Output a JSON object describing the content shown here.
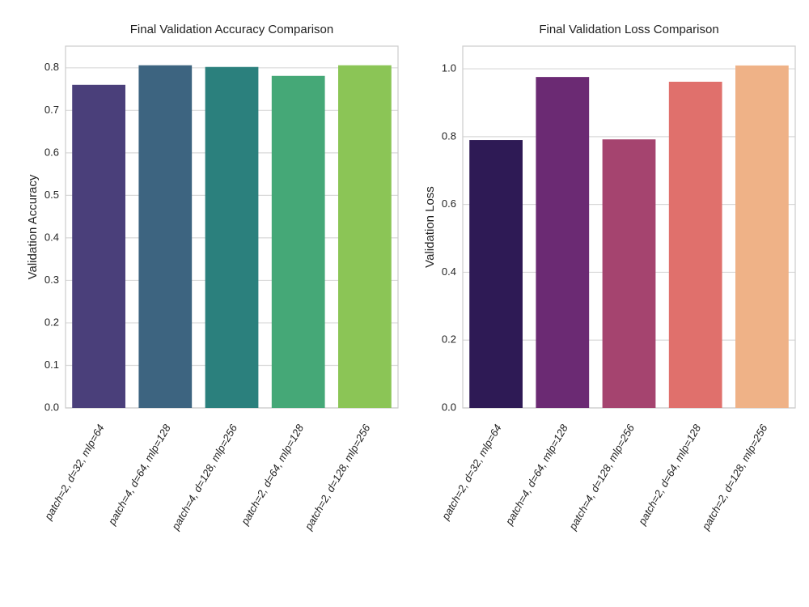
{
  "chart_data": [
    {
      "type": "bar",
      "title": "Final Validation Accuracy Comparison",
      "y_label": "Validation Accuracy",
      "categories": [
        "patch=2, d=32, mlp=64",
        "patch=4, d=64, mlp=128",
        "patch=4, d=128, mlp=256",
        "patch=2, d=64, mlp=128",
        "patch=2, d=128, mlp=256"
      ],
      "values": [
        0.76,
        0.806,
        0.802,
        0.781,
        0.806
      ],
      "colors": [
        "#4a3f7a",
        "#3d6480",
        "#2b807d",
        "#45a877",
        "#8bc556"
      ],
      "ylim": [
        0,
        0.851
      ],
      "yticks": [
        {
          "value": 0,
          "label": "0.0"
        },
        0.1,
        0.2,
        0.3,
        0.4,
        0.5,
        0.6,
        0.7,
        0.8
      ],
      "grid": true
    },
    {
      "type": "bar",
      "title": "Final Validation Loss Comparison",
      "y_label": "Validation Loss",
      "categories": [
        "patch=2, d=32, mlp=64",
        "patch=4, d=64, mlp=128",
        "patch=4, d=128, mlp=256",
        "patch=2, d=64, mlp=128",
        "patch=2, d=128, mlp=256"
      ],
      "values": [
        0.79,
        0.976,
        0.792,
        0.962,
        1.01
      ],
      "colors": [
        "#2e1a55",
        "#6b2a73",
        "#a5446f",
        "#e0706c",
        "#efb287"
      ],
      "ylim": [
        0,
        1.067
      ],
      "yticks": [
        {
          "value": 0,
          "label": "0.0"
        },
        0.2,
        0.4,
        0.6,
        0.8,
        {
          "value": 1,
          "label": "1.0"
        }
      ],
      "grid": true
    }
  ]
}
